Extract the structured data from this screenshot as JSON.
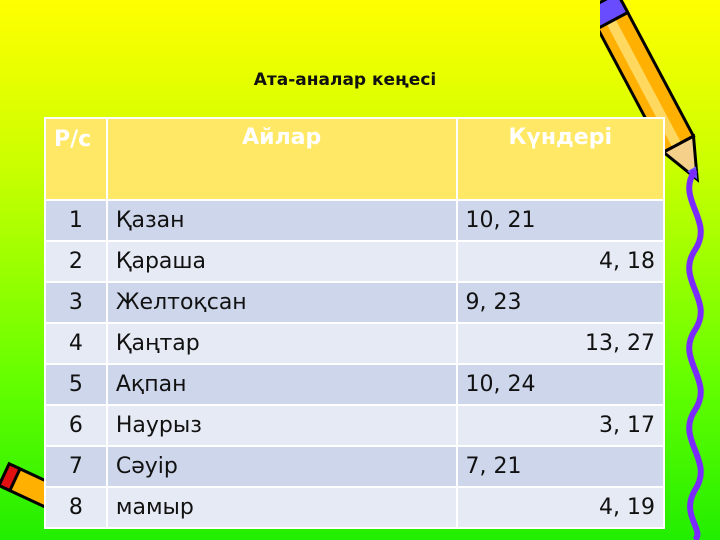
{
  "title": "Ата-аналар кеңесі",
  "table": {
    "headers": [
      "Р/с",
      "Айлар",
      "Күндері"
    ],
    "rows": [
      {
        "num": "1",
        "month": "Қазан",
        "days": "10,  21"
      },
      {
        "num": "2",
        "month": "Қараша",
        "days": "4,  18"
      },
      {
        "num": "3",
        "month": "Желтоқсан",
        "days": "9,  23"
      },
      {
        "num": "4",
        "month": "Қаңтар",
        "days": "13,  27"
      },
      {
        "num": "5",
        "month": "Ақпан",
        "days": "10,  24"
      },
      {
        "num": "6",
        "month": "Наурыз",
        "days": "3,  17"
      },
      {
        "num": "7",
        "month": "Сәуір",
        "days": "7,  21"
      },
      {
        "num": "8",
        "month": "мамыр",
        "days": "4,  19"
      }
    ]
  },
  "colors": {
    "header": "#ffe866",
    "row_dark": "#cdd6ea",
    "row_light": "#e6eaf4"
  }
}
